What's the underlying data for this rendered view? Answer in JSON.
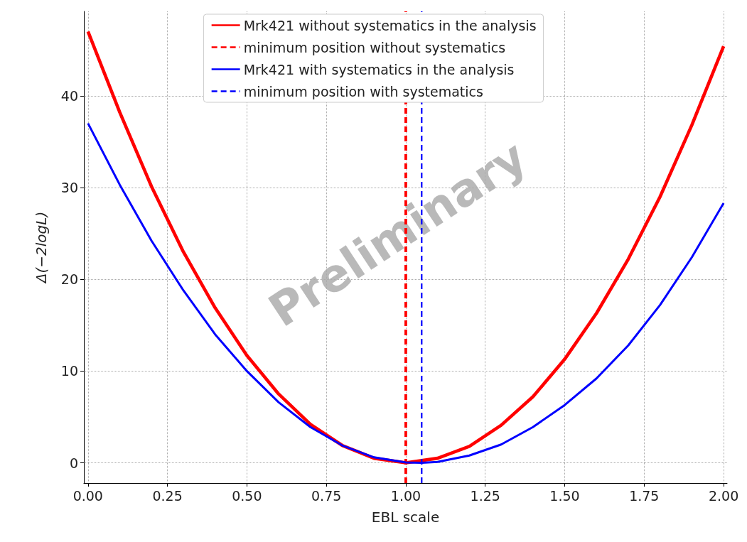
{
  "chart_data": {
    "type": "line",
    "xlabel": "EBL scale",
    "ylabel": "Δ(−2logL)",
    "xlim": [
      -0.013,
      2.011
    ],
    "ylim": [
      -2.2,
      49.2
    ],
    "xticks": [
      {
        "value": 0,
        "label": "0.00"
      },
      {
        "value": 0.25,
        "label": "0.25"
      },
      {
        "value": 0.5,
        "label": "0.50"
      },
      {
        "value": 0.75,
        "label": "0.75"
      },
      {
        "value": 1,
        "label": "1.00"
      },
      {
        "value": 1.25,
        "label": "1.25"
      },
      {
        "value": 1.5,
        "label": "1.50"
      },
      {
        "value": 1.75,
        "label": "1.75"
      },
      {
        "value": 2,
        "label": "2.00"
      }
    ],
    "yticks": [
      0,
      10,
      20,
      30,
      40
    ],
    "grid": true,
    "legend": "top",
    "marker": "none",
    "annotations": [
      "Preliminary"
    ],
    "series": [
      {
        "name": "Mrk421 without systematics in the analysis",
        "color": "#ff0000",
        "line_style": "solid",
        "x": [
          0,
          0.1,
          0.2,
          0.3,
          0.4,
          0.5,
          0.6,
          0.7,
          0.8,
          0.9,
          1.0,
          1.1,
          1.2,
          1.3,
          1.4,
          1.5,
          1.6,
          1.7,
          1.8,
          1.9,
          2.0
        ],
        "values": [
          47,
          38.2,
          30.1,
          23.0,
          16.9,
          11.7,
          7.5,
          4.2,
          1.9,
          0.5,
          0,
          0.5,
          1.8,
          4.1,
          7.2,
          11.3,
          16.3,
          22.2,
          29.0,
          36.8,
          45.4
        ]
      },
      {
        "name": "minimum position without systematics",
        "color": "#ff0000",
        "line_style": "dashed",
        "x": [
          1.0,
          1.0
        ],
        "values": [
          -2.2,
          49.2
        ]
      },
      {
        "name": "Mrk421 with systematics in the analysis",
        "color": "#0000ff",
        "line_style": "solid",
        "x": [
          0,
          0.1,
          0.2,
          0.3,
          0.4,
          0.5,
          0.6,
          0.7,
          0.8,
          0.9,
          1.0,
          1.05,
          1.1,
          1.2,
          1.3,
          1.4,
          1.5,
          1.6,
          1.7,
          1.8,
          1.9,
          2.0
        ],
        "values": [
          37,
          30.3,
          24.2,
          18.8,
          14.0,
          10.0,
          6.6,
          3.9,
          1.9,
          0.6,
          0.05,
          0,
          0.1,
          0.8,
          2.0,
          3.9,
          6.3,
          9.2,
          12.8,
          17.2,
          22.4,
          28.3
        ]
      },
      {
        "name": "minimum position with systematics",
        "color": "#0000ff",
        "line_style": "dashed",
        "x": [
          1.05,
          1.05
        ],
        "values": [
          -2.2,
          49.2
        ]
      }
    ]
  }
}
